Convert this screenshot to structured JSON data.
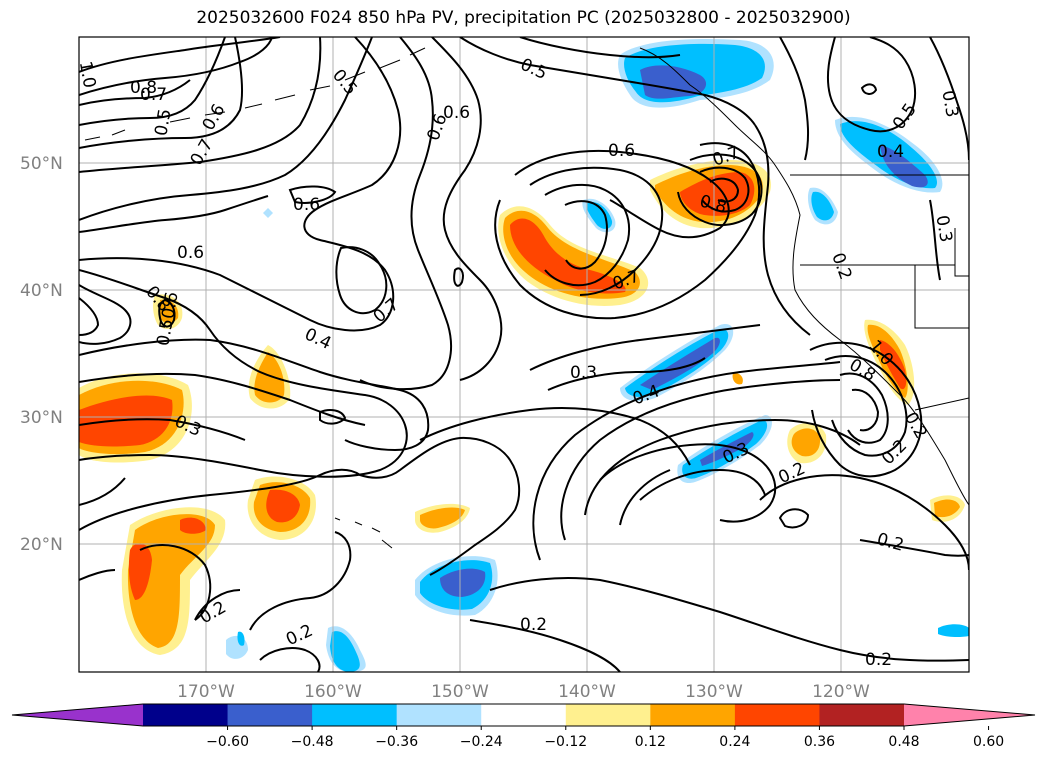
{
  "title": "2025032600 F024 850 hPa PV, precipitation PC (2025032800 - 2025032900)",
  "map": {
    "lat_ticks": [
      "50°N",
      "40°N",
      "30°N",
      "20°N"
    ],
    "lon_ticks": [
      "170°W",
      "160°W",
      "150°W",
      "140°W",
      "130°W",
      "120°W"
    ],
    "grid": true
  },
  "contour_labels": {
    "c1": "1.0",
    "c2": "0.8",
    "c3": "0.7",
    "c4": "0.5",
    "c5": "0.6",
    "c6": "0.7",
    "c7": "0.5",
    "c8": "0.6",
    "c9": "0.6",
    "c10": "0.5",
    "c11": "0.6",
    "c12": "0.7",
    "c13": "0.8",
    "c14": "0.5",
    "c15": "0.4",
    "c16": "0.3",
    "c17": "0.6",
    "c18": "0.7",
    "c19": "0.6",
    "c20": "0.7",
    "c21": "0.4",
    "c22": "0.3",
    "c23": "0.3",
    "c24": "0.4",
    "c25": "0.8",
    "c26": "0.6",
    "c27": "0.5",
    "c28": "0.2",
    "c29": "0.3",
    "c30": "0.8",
    "c31": "1.0",
    "c32": "0.3",
    "c33": "0.2",
    "c34": "0.2",
    "c35": "0.2",
    "c36": "0.2"
  },
  "colorbar": {
    "colors": [
      "#9932cc",
      "#00008b",
      "#3a5fcd",
      "#00bfff",
      "#b0e2ff",
      "#ffffff",
      "#fff08f",
      "#ffa500",
      "#ff4500",
      "#b22222",
      "#ff82ab"
    ],
    "ticks": [
      "−0.60",
      "−0.48",
      "−0.36",
      "−0.24",
      "−0.12",
      "0.12",
      "0.24",
      "0.36",
      "0.48",
      "0.60"
    ]
  },
  "fill_colors": {
    "lightyellow": "#fff08f",
    "orange": "#ffa500",
    "redorange": "#ff4500",
    "firebrick": "#b22222",
    "lightblue": "#b0e2ff",
    "skyblue": "#00bfff",
    "royalblue": "#3a5fcd",
    "navy": "#00008b"
  }
}
